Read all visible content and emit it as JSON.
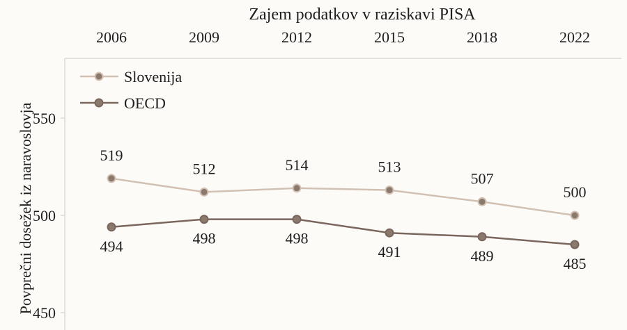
{
  "chart_data": {
    "type": "line",
    "title": "Zajem podatkov v raziskavi PISA",
    "xlabel": "",
    "ylabel": "Povprečni dosežek iz naravoslovja",
    "categories": [
      "2006",
      "2009",
      "2012",
      "2015",
      "2018",
      "2022"
    ],
    "ylim": [
      450,
      570
    ],
    "yticks": [
      450,
      500,
      550
    ],
    "grid": false,
    "legend_position": "top-left",
    "series": [
      {
        "name": "Slovenija",
        "values": [
          519,
          512,
          514,
          513,
          507,
          500
        ],
        "color": "#d2c0b2",
        "label_placement": "above"
      },
      {
        "name": "OECD",
        "values": [
          494,
          498,
          498,
          491,
          489,
          485
        ],
        "color": "#7a665c",
        "label_placement": "below"
      }
    ]
  },
  "colors": {
    "axis": "#d9d9d9",
    "marker_fill": "#8a7a6e",
    "text": "#1e1e1e"
  }
}
